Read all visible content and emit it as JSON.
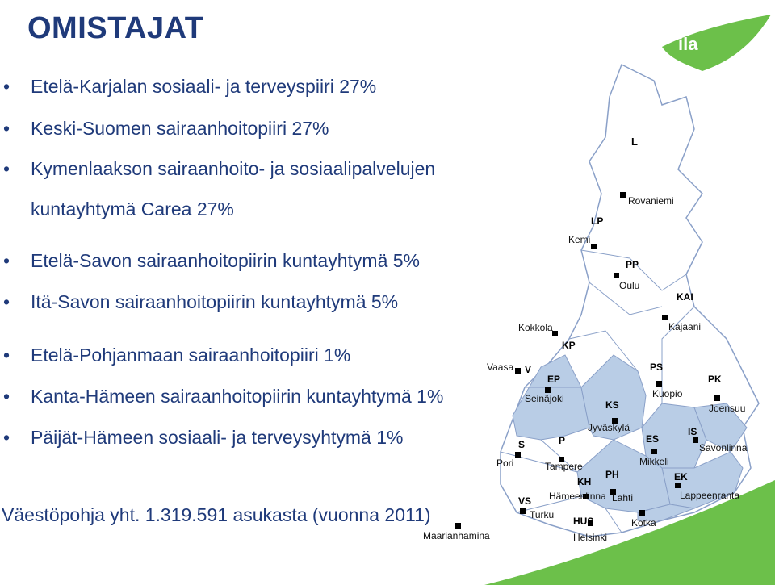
{
  "title": "OMISTAJAT",
  "logo_text": "ila",
  "bullets": [
    "Etelä-Karjalan sosiaali- ja terveyspiiri 27%",
    "Keski-Suomen sairaanhoitopiiri 27%",
    "Kymenlaakson sairaanhoito- ja sosiaalipalvelujen",
    "kuntayhtymä Carea 27%",
    "Etelä-Savon sairaanhoitopiirin kuntayhtymä 5%",
    "Itä-Savon sairaanhoitopiirin kuntayhtymä 5%",
    "Etelä-Pohjanmaan sairaanhoitopiiri 1%",
    "Kanta-Hämeen sairaanhoitopiirin kuntayhtymä 1%",
    "Päijät-Hämeen sosiaali- ja terveysyhtymä 1%"
  ],
  "footer": "Väestöpohja yht. 1.319.591 asukasta (vuonna 2011)",
  "map": {
    "region_codes": {
      "L": "L",
      "LP": "LP",
      "PP": "PP",
      "KAI": "KAI",
      "KP": "KP",
      "V": "V",
      "EP": "EP",
      "KS": "KS",
      "PS": "PS",
      "PK": "PK",
      "ES": "ES",
      "IS": "IS",
      "S": "S",
      "P": "P",
      "PH": "PH",
      "EK": "EK",
      "KH": "KH",
      "VS": "VS",
      "HUS": "HUS"
    },
    "cities": {
      "rovaniemi": "Rovaniemi",
      "kemi": "Kemi",
      "oulu": "Oulu",
      "kajaani": "Kajaani",
      "kokkola": "Kokkola",
      "vaasa": "Vaasa",
      "seinajoki": "Seinäjoki",
      "kuopio": "Kuopio",
      "joensuu": "Joensuu",
      "jyvaskyla": "Jyväskylä",
      "savonlinna": "Savonlinna",
      "mikkeli": "Mikkeli",
      "pori": "Pori",
      "tampere": "Tampere",
      "hameenlinna": "Hämeenlinna",
      "lahti": "Lahti",
      "lappeenranta": "Lappeenranta",
      "turku": "Turku",
      "kotka": "Kotka",
      "helsinki": "Helsinki",
      "maarianhamina": "Maarianhamina"
    }
  },
  "colors": {
    "title": "#1f3a7a",
    "text": "#1f3a7a",
    "owner_region": "#b9cde6",
    "border": "#8aa0c8",
    "green": "#6cc04a",
    "marker": "#000000"
  }
}
